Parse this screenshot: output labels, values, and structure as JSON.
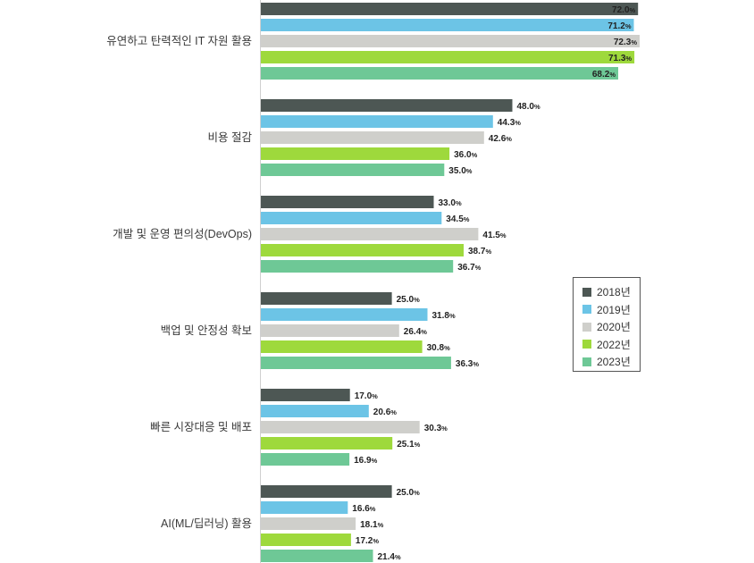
{
  "chart_data": {
    "type": "bar",
    "orientation": "horizontal",
    "title": "",
    "xlabel": "",
    "ylabel": "",
    "xlim": [
      0,
      72.3
    ],
    "grid": false,
    "legend_position": "right",
    "value_suffix": "%",
    "categories": [
      "유연하고 탄력적인 IT 자원 활용",
      "비용 절감",
      "개발 및 운영 편의성(DevOps)",
      "백업 및 안정성 확보",
      "빠른 시장대응 및 배포",
      "AI(ML/딥러닝) 활용"
    ],
    "series": [
      {
        "name": "2018년",
        "color": "#4d5754",
        "values": [
          72.0,
          48.0,
          33.0,
          25.0,
          17.0,
          25.0
        ]
      },
      {
        "name": "2019년",
        "color": "#6cc4e6",
        "values": [
          71.2,
          44.3,
          34.5,
          31.8,
          20.6,
          16.6
        ]
      },
      {
        "name": "2020년",
        "color": "#cfcfcb",
        "values": [
          72.3,
          42.6,
          41.5,
          26.4,
          30.3,
          18.1
        ]
      },
      {
        "name": "2022년",
        "color": "#9ed93c",
        "values": [
          71.3,
          36.0,
          38.7,
          30.8,
          25.1,
          17.2
        ]
      },
      {
        "name": "2023년",
        "color": "#6ec896",
        "values": [
          68.2,
          35.0,
          36.7,
          36.3,
          16.9,
          21.4
        ]
      }
    ]
  }
}
